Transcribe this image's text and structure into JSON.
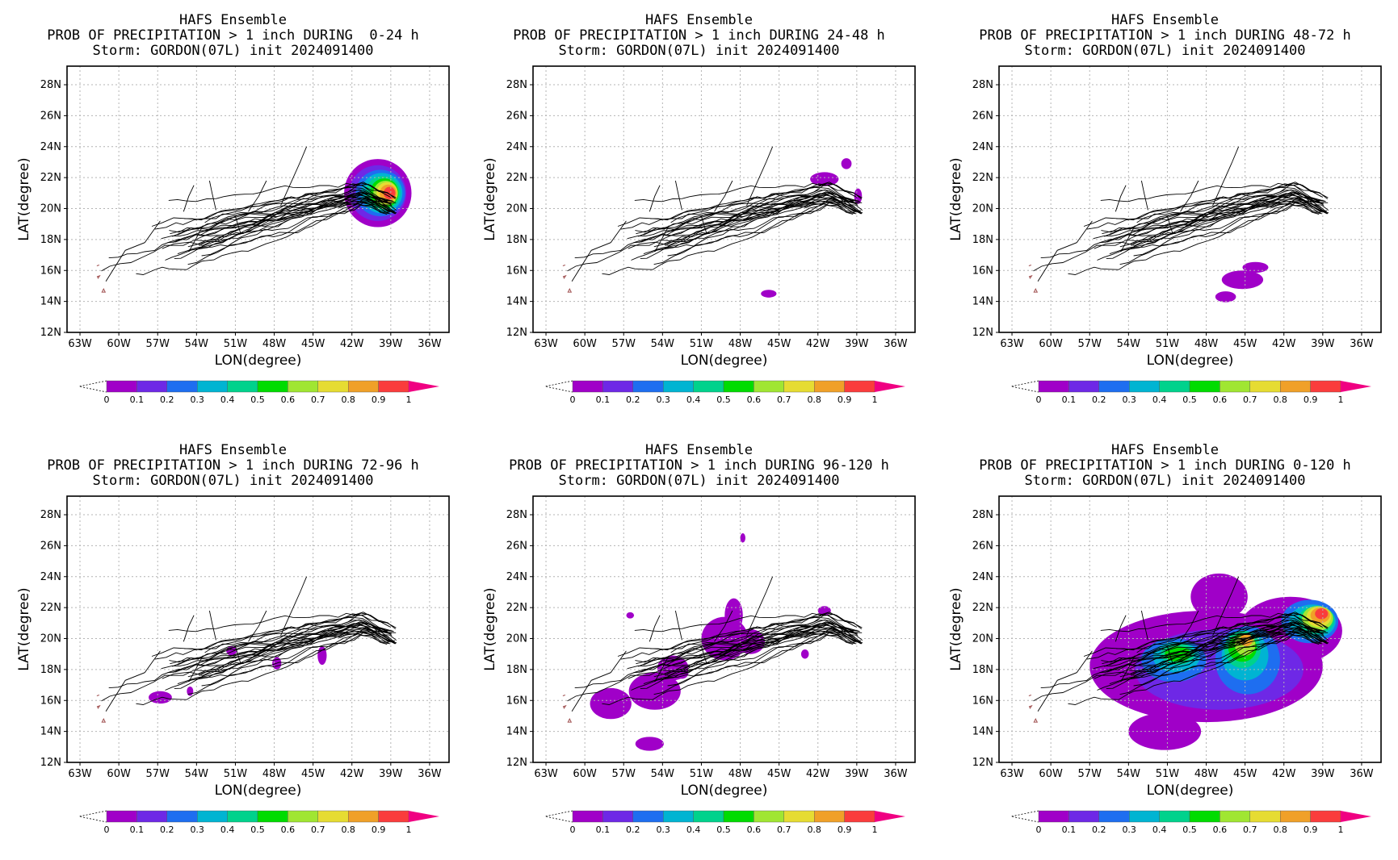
{
  "model": "HAFS Ensemble",
  "storm_line": "Storm: GORDON(07L) init 2024091400",
  "xlabel": "LON(degree)",
  "ylabel": "LAT(degree)",
  "lon_ticks": [
    "63W",
    "60W",
    "57W",
    "54W",
    "51W",
    "48W",
    "45W",
    "42W",
    "39W",
    "36W"
  ],
  "lat_ticks": [
    "12N",
    "14N",
    "16N",
    "18N",
    "20N",
    "22N",
    "24N",
    "26N",
    "28N"
  ],
  "colorbar": {
    "ticks": [
      "0",
      "0.1",
      "0.2",
      "0.3",
      "0.4",
      "0.5",
      "0.6",
      "0.7",
      "0.8",
      "0.9",
      "1"
    ],
    "colors": [
      "#a000c8",
      "#6e28e6",
      "#1e6ef0",
      "#00b4d2",
      "#00d28c",
      "#00dc00",
      "#a0e632",
      "#e6dc32",
      "#f0a028",
      "#fa3c3c",
      "#f00082"
    ]
  },
  "panels": [
    {
      "id": "p1",
      "title": "PROB OF PRECIPITATION > 1 inch DURING  0-24 h"
    },
    {
      "id": "p2",
      "title": "PROB OF PRECIPITATION > 1 inch DURING 24-48 h"
    },
    {
      "id": "p3",
      "title": "PROB OF PRECIPITATION > 1 inch DURING 48-72 h"
    },
    {
      "id": "p4",
      "title": "PROB OF PRECIPITATION > 1 inch DURING 72-96 h"
    },
    {
      "id": "p5",
      "title": "PROB OF PRECIPITATION > 1 inch DURING 96-120 h"
    },
    {
      "id": "p6",
      "title": "PROB OF PRECIPITATION > 1 inch DURING 0-120 h"
    }
  ]
}
